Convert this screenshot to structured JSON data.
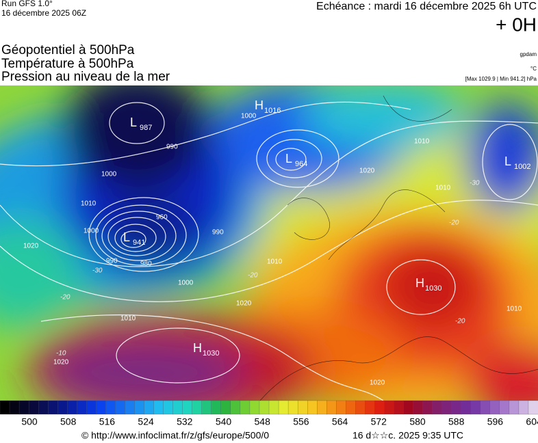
{
  "header": {
    "run": "Run GFS 1.0°",
    "run_date": "16 décembre 2025 06Z",
    "valid": "Echéance : mardi 16 décembre 2025 6h UTC",
    "lead": "+ 0H",
    "fields": [
      "Géopotentiel à 500hPa",
      "Température à 500hPa",
      "Pression au niveau de la mer"
    ],
    "units": [
      "gpdam",
      "°C",
      "[Max 1029.9 | Min 941.2] hPa"
    ]
  },
  "map": {
    "centers": [
      {
        "type": "L",
        "value": "987"
      },
      {
        "type": "H",
        "value": "1016"
      },
      {
        "type": "L",
        "value": "964"
      },
      {
        "type": "L",
        "value": "941"
      },
      {
        "type": "L",
        "value": "1002"
      },
      {
        "type": "H",
        "value": "1030"
      },
      {
        "type": "H",
        "value": "1030"
      }
    ],
    "isobar_labels": [
      "1000",
      "990",
      "980",
      "960",
      "990",
      "1000",
      "1010",
      "1000",
      "1020",
      "1010",
      "1020",
      "1000",
      "990",
      "1010",
      "1010",
      "1020",
      "1010",
      "1020",
      "1020",
      "1010"
    ],
    "temperature_labels": [
      "-30",
      "-20",
      "-10",
      "-20",
      "-20",
      "-30",
      "-20"
    ]
  },
  "colorbar": {
    "labels": [
      500,
      508,
      516,
      524,
      532,
      540,
      548,
      556,
      564,
      572,
      580,
      588,
      596,
      604
    ]
  },
  "footer": {
    "source": "© http://www.infoclimat.fr/z/gfs/europe/500/0",
    "generated": "16 d☆☆c. 2025  9:35 UTC"
  }
}
